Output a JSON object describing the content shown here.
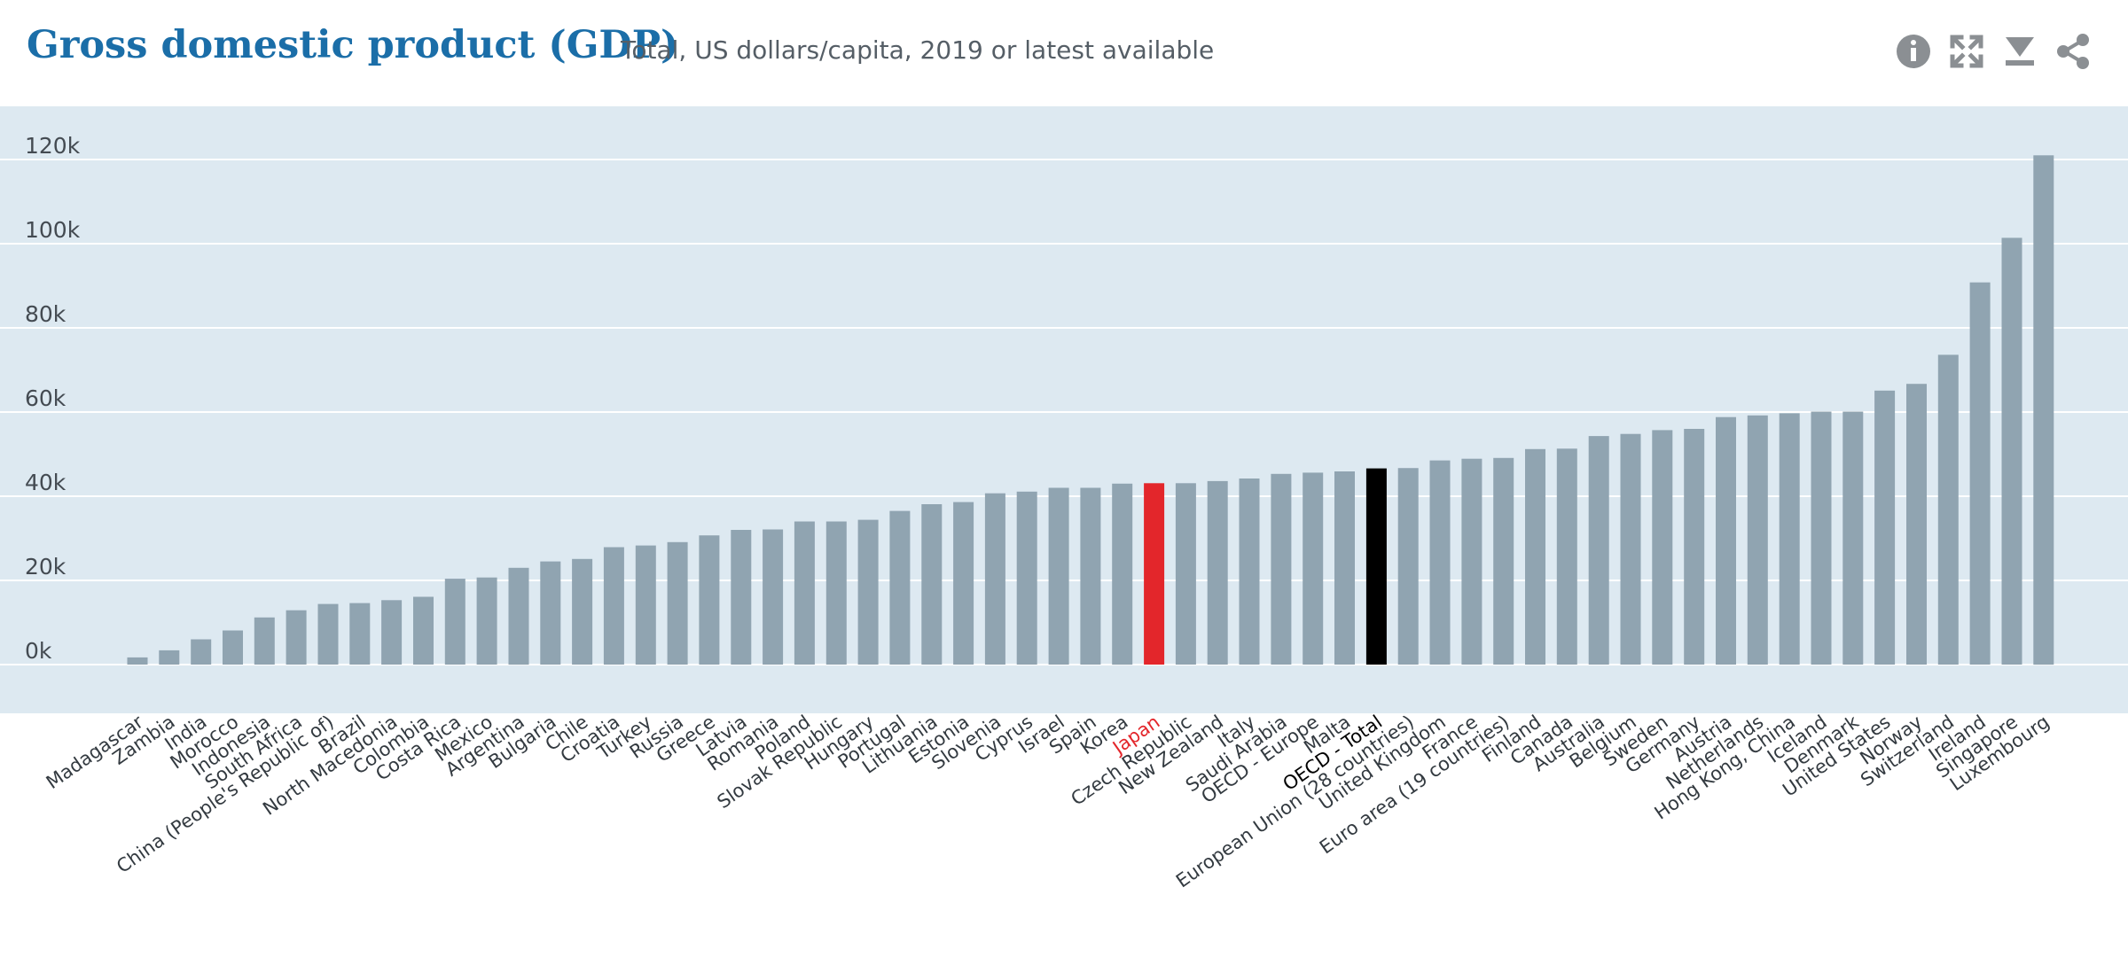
{
  "header": {
    "title": "Gross domestic product (GDP)",
    "subtitle": "Total, US dollars/capita, 2019 or latest available"
  },
  "toolbar": [
    {
      "icon": "info-icon",
      "label": "info"
    },
    {
      "icon": "fullscreen-icon",
      "label": "fullscreen"
    },
    {
      "icon": "download-icon",
      "label": "download"
    },
    {
      "icon": "share-icon",
      "label": "share"
    }
  ],
  "colors": {
    "plot_background": "#dde9f1",
    "bar_default": "#90a4b1",
    "bar_highlight_japan": "#e3262b",
    "bar_highlight_oecd": "#000000",
    "title": "#1b6ea8"
  },
  "chart_data": {
    "type": "bar",
    "title": "Gross domestic product (GDP)",
    "subtitle": "Total, US dollars/capita, 2019 or latest available",
    "ylim": [
      -12000,
      130000
    ],
    "yticks": [
      0,
      20000,
      40000,
      60000,
      80000,
      100000,
      120000
    ],
    "ytick_labels": [
      "0k",
      "20k",
      "40k",
      "60k",
      "80k",
      "100k",
      "120k"
    ],
    "grid": true,
    "legend": "none",
    "categories": [
      "Madagascar",
      "Zambia",
      "India",
      "Morocco",
      "Indonesia",
      "South Africa",
      "China (People's Republic of)",
      "Brazil",
      "North Macedonia",
      "Colombia",
      "Costa Rica",
      "Mexico",
      "Argentina",
      "Bulgaria",
      "Chile",
      "Croatia",
      "Turkey",
      "Russia",
      "Greece",
      "Latvia",
      "Romania",
      "Poland",
      "Slovak Republic",
      "Hungary",
      "Portugal",
      "Lithuania",
      "Estonia",
      "Slovenia",
      "Cyprus",
      "Israel",
      "Spain",
      "Korea",
      "Japan",
      "Czech Republic",
      "New Zealand",
      "Italy",
      "Saudi Arabia",
      "OECD - Europe",
      "Malta",
      "OECD - Total",
      "European Union (28 countries)",
      "United Kingdom",
      "France",
      "Euro area (19 countries)",
      "Finland",
      "Canada",
      "Australia",
      "Belgium",
      "Sweden",
      "Germany",
      "Austria",
      "Netherlands",
      "Hong Kong, China",
      "Iceland",
      "Denmark",
      "United States",
      "Norway",
      "Switzerland",
      "Ireland",
      "Singapore",
      "Luxembourg"
    ],
    "values": [
      1700,
      3400,
      6000,
      8100,
      11200,
      12900,
      14400,
      14600,
      15300,
      16100,
      20400,
      20700,
      23000,
      24500,
      25100,
      27900,
      28300,
      29100,
      30700,
      32000,
      32100,
      34000,
      34000,
      34400,
      36500,
      38100,
      38600,
      40700,
      41100,
      42000,
      42000,
      43000,
      43100,
      43100,
      43600,
      44200,
      45300,
      45600,
      45900,
      46600,
      46700,
      48500,
      48900,
      49100,
      51200,
      51300,
      54300,
      54800,
      55700,
      56000,
      58800,
      59200,
      59700,
      60100,
      60100,
      65100,
      66700,
      73600,
      90800,
      101400,
      121000
    ],
    "highlight": {
      "Japan": "#e3262b",
      "OECD - Total": "#000000"
    },
    "label_highlight": {
      "Japan": "#e3262b",
      "OECD - Total": "#000000"
    }
  }
}
